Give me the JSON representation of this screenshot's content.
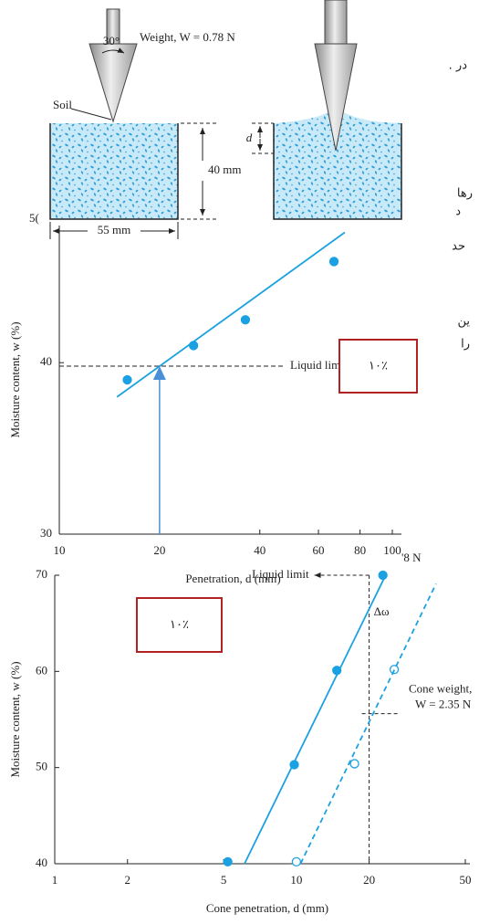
{
  "figure": {
    "weight_label": "Weight, W = 0.78 N",
    "angle_label": "30°",
    "soil_label": "Soil",
    "depth_label": "40 mm",
    "width_label": "55 mm",
    "penetration_label": "d"
  },
  "text_fragments": [
    ". در",
    "رها",
    "د",
    "حد",
    "ین",
    "را",
    "5(",
    "'8 N"
  ],
  "chart_data": [
    {
      "type": "line",
      "x_label": "Penetration, d (mm)",
      "y_label": "Moisture content, w (%)",
      "xscale": "log",
      "xlim": [
        10,
        100
      ],
      "ylim": [
        30,
        48
      ],
      "xticks": [
        10,
        20,
        40,
        60,
        80,
        100
      ],
      "yticks": [
        30,
        40
      ],
      "series": [
        {
          "style": "points",
          "marker": "filled",
          "color": "#1ba1e2",
          "x": [
            16,
            25.3,
            36.2,
            66.8
          ],
          "values": [
            39.0,
            41.0,
            42.5,
            45.9
          ]
        },
        {
          "style": "line",
          "dashed": false,
          "color": "#1ba1e2",
          "x": [
            14.9,
            72
          ],
          "values": [
            38.0,
            47.6
          ]
        }
      ],
      "liquid_limit": {
        "label": "Liquid limit",
        "x": 20,
        "y": 39.8,
        "color": "#4a90d9"
      },
      "note": "۱۰٪"
    },
    {
      "type": "line",
      "x_label": "Cone penetration, d (mm)",
      "y_label": "Moisture content, w (%)",
      "xscale": "log",
      "xlim": [
        1,
        50
      ],
      "ylim": [
        40,
        70
      ],
      "xticks": [
        1,
        2,
        5,
        10,
        20,
        50
      ],
      "yticks": [
        40,
        50,
        60,
        70
      ],
      "series": [
        {
          "style": "points",
          "marker": "filled",
          "color": "#1ba1e2",
          "x": [
            5.2,
            9.8,
            14.7,
            22.8
          ],
          "values": [
            40.2,
            50.3,
            60.1,
            70.0
          ]
        },
        {
          "style": "points",
          "marker": "open",
          "color": "#1ba1e2",
          "x": [
            10,
            17.4,
            25.4
          ],
          "values": [
            40.2,
            50.4,
            60.2
          ]
        },
        {
          "style": "line",
          "dashed": false,
          "color": "#1ba1e2",
          "x": [
            6.1,
            23.4
          ],
          "values": [
            40,
            70
          ]
        },
        {
          "style": "line",
          "dashed": true,
          "color": "#1ba1e2",
          "x": [
            10.4,
            37.8
          ],
          "values": [
            40,
            69.1
          ]
        }
      ],
      "liquid_limit": {
        "label": "Liquid limit",
        "x": 20,
        "y": 70,
        "color": "#222"
      },
      "delta": {
        "label": "Δω",
        "x": 20,
        "from": 70,
        "to": 55.6
      },
      "cone_weight": [
        "Cone weight,",
        "W = 2.35 N"
      ],
      "note": "۱۰٪"
    }
  ]
}
